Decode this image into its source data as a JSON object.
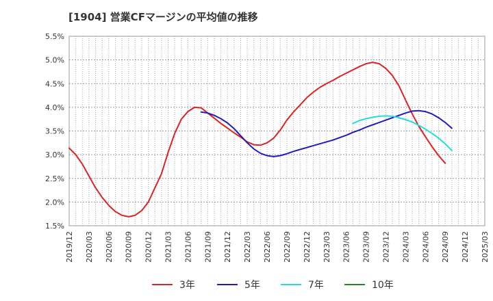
{
  "title": "[1904]  営業CFマージンの平均値の推移",
  "chart_data": {
    "type": "line",
    "y_tick_labels": [
      "5.5%",
      "5.0%",
      "4.5%",
      "4.0%",
      "3.5%",
      "3.0%",
      "2.5%",
      "2.0%",
      "1.5%"
    ],
    "x_tick_labels": [
      "2019/12",
      "2020/03",
      "2020/06",
      "2020/09",
      "2020/12",
      "2021/03",
      "2021/06",
      "2021/09",
      "2021/12",
      "2022/03",
      "2022/06",
      "2022/09",
      "2022/12",
      "2023/03",
      "2023/06",
      "2023/09",
      "2023/12",
      "2024/03",
      "2024/06",
      "2024/09",
      "2024/12",
      "2025/03"
    ],
    "ylim": [
      1.5,
      5.5
    ],
    "grid": true,
    "legend_position": "bottom",
    "series": [
      {
        "name": "3年",
        "color": "#dd2222",
        "points": [
          [
            "2019/12",
            3.14
          ],
          [
            "2020/01",
            3.0
          ],
          [
            "2020/02",
            2.8
          ],
          [
            "2020/03",
            2.55
          ],
          [
            "2020/04",
            2.3
          ],
          [
            "2020/05",
            2.1
          ],
          [
            "2020/06",
            1.93
          ],
          [
            "2020/07",
            1.8
          ],
          [
            "2020/08",
            1.72
          ],
          [
            "2020/09",
            1.69
          ],
          [
            "2020/10",
            1.72
          ],
          [
            "2020/11",
            1.82
          ],
          [
            "2020/12",
            2.0
          ],
          [
            "2021/01",
            2.3
          ],
          [
            "2021/02",
            2.6
          ],
          [
            "2021/03",
            3.05
          ],
          [
            "2021/04",
            3.45
          ],
          [
            "2021/05",
            3.75
          ],
          [
            "2021/06",
            3.91
          ],
          [
            "2021/07",
            4.0
          ],
          [
            "2021/08",
            3.99
          ],
          [
            "2021/09",
            3.88
          ],
          [
            "2021/10",
            3.77
          ],
          [
            "2021/11",
            3.66
          ],
          [
            "2021/12",
            3.56
          ],
          [
            "2022/01",
            3.46
          ],
          [
            "2022/02",
            3.37
          ],
          [
            "2022/03",
            3.27
          ],
          [
            "2022/04",
            3.21
          ],
          [
            "2022/05",
            3.2
          ],
          [
            "2022/06",
            3.25
          ],
          [
            "2022/07",
            3.35
          ],
          [
            "2022/08",
            3.52
          ],
          [
            "2022/09",
            3.73
          ],
          [
            "2022/10",
            3.9
          ],
          [
            "2022/11",
            4.05
          ],
          [
            "2022/12",
            4.2
          ],
          [
            "2023/01",
            4.32
          ],
          [
            "2023/02",
            4.42
          ],
          [
            "2023/03",
            4.5
          ],
          [
            "2023/04",
            4.57
          ],
          [
            "2023/05",
            4.65
          ],
          [
            "2023/06",
            4.72
          ],
          [
            "2023/07",
            4.79
          ],
          [
            "2023/08",
            4.86
          ],
          [
            "2023/09",
            4.92
          ],
          [
            "2023/10",
            4.95
          ],
          [
            "2023/11",
            4.92
          ],
          [
            "2023/12",
            4.82
          ],
          [
            "2024/01",
            4.67
          ],
          [
            "2024/02",
            4.45
          ],
          [
            "2024/03",
            4.15
          ],
          [
            "2024/04",
            3.86
          ],
          [
            "2024/05",
            3.6
          ],
          [
            "2024/06",
            3.38
          ],
          [
            "2024/07",
            3.17
          ],
          [
            "2024/08",
            2.98
          ],
          [
            "2024/09",
            2.82
          ]
        ]
      },
      {
        "name": "5年",
        "color": "#1c1cc0",
        "points": [
          [
            "2021/08",
            3.9
          ],
          [
            "2021/09",
            3.88
          ],
          [
            "2021/10",
            3.83
          ],
          [
            "2021/11",
            3.76
          ],
          [
            "2021/12",
            3.67
          ],
          [
            "2022/01",
            3.55
          ],
          [
            "2022/02",
            3.4
          ],
          [
            "2022/03",
            3.25
          ],
          [
            "2022/04",
            3.12
          ],
          [
            "2022/05",
            3.03
          ],
          [
            "2022/06",
            2.98
          ],
          [
            "2022/07",
            2.96
          ],
          [
            "2022/08",
            2.98
          ],
          [
            "2022/09",
            3.02
          ],
          [
            "2022/10",
            3.07
          ],
          [
            "2022/11",
            3.11
          ],
          [
            "2022/12",
            3.15
          ],
          [
            "2023/01",
            3.19
          ],
          [
            "2023/02",
            3.23
          ],
          [
            "2023/03",
            3.27
          ],
          [
            "2023/04",
            3.31
          ],
          [
            "2023/05",
            3.36
          ],
          [
            "2023/06",
            3.41
          ],
          [
            "2023/07",
            3.47
          ],
          [
            "2023/08",
            3.52
          ],
          [
            "2023/09",
            3.58
          ],
          [
            "2023/10",
            3.63
          ],
          [
            "2023/11",
            3.68
          ],
          [
            "2023/12",
            3.73
          ],
          [
            "2024/01",
            3.78
          ],
          [
            "2024/02",
            3.83
          ],
          [
            "2024/03",
            3.88
          ],
          [
            "2024/04",
            3.92
          ],
          [
            "2024/05",
            3.93
          ],
          [
            "2024/06",
            3.91
          ],
          [
            "2024/07",
            3.86
          ],
          [
            "2024/08",
            3.78
          ],
          [
            "2024/09",
            3.68
          ],
          [
            "2024/10",
            3.56
          ]
        ]
      },
      {
        "name": "7年",
        "color": "#22dddd",
        "points": [
          [
            "2023/07",
            3.66
          ],
          [
            "2023/08",
            3.72
          ],
          [
            "2023/09",
            3.76
          ],
          [
            "2023/10",
            3.79
          ],
          [
            "2023/11",
            3.81
          ],
          [
            "2023/12",
            3.82
          ],
          [
            "2024/01",
            3.81
          ],
          [
            "2024/02",
            3.78
          ],
          [
            "2024/03",
            3.74
          ],
          [
            "2024/04",
            3.69
          ],
          [
            "2024/05",
            3.62
          ],
          [
            "2024/06",
            3.54
          ],
          [
            "2024/07",
            3.45
          ],
          [
            "2024/08",
            3.35
          ],
          [
            "2024/09",
            3.23
          ],
          [
            "2024/10",
            3.09
          ]
        ]
      },
      {
        "name": "10年",
        "color": "#228822",
        "points": []
      }
    ]
  }
}
